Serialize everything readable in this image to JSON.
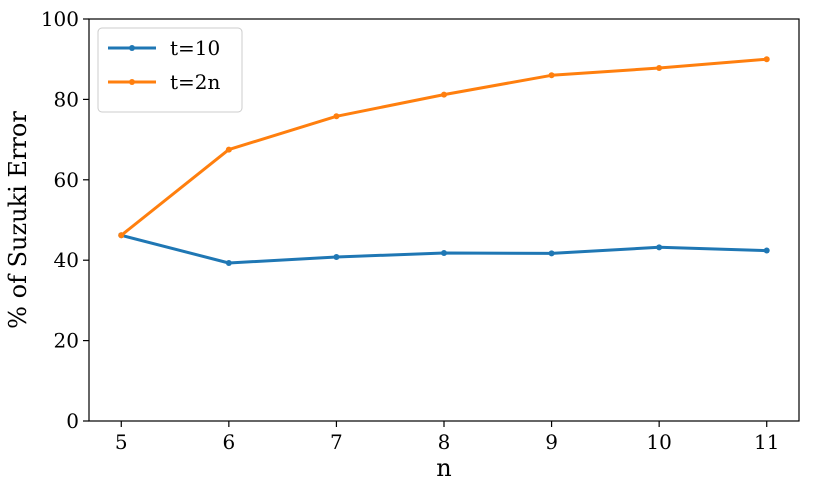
{
  "chart_data": {
    "type": "line",
    "xlabel": "n",
    "ylabel": "% of Suzuki Error",
    "x": [
      5,
      6,
      7,
      8,
      9,
      10,
      11
    ],
    "xlim": [
      4.7,
      11.3
    ],
    "ylim": [
      0,
      100
    ],
    "xticks": [
      "5",
      "6",
      "7",
      "8",
      "9",
      "10",
      "11"
    ],
    "yticks": [
      "0",
      "20",
      "40",
      "60",
      "80",
      "100"
    ],
    "grid": false,
    "legend_position": "top-left",
    "series": [
      {
        "name": "t=10",
        "color": "#1f77b4",
        "values": [
          46.2,
          39.3,
          40.8,
          41.8,
          41.7,
          43.2,
          42.4
        ]
      },
      {
        "name": "t=2n",
        "color": "#ff7f0e",
        "values": [
          46.2,
          67.5,
          75.8,
          81.2,
          86.0,
          87.8,
          90.0
        ]
      }
    ]
  }
}
